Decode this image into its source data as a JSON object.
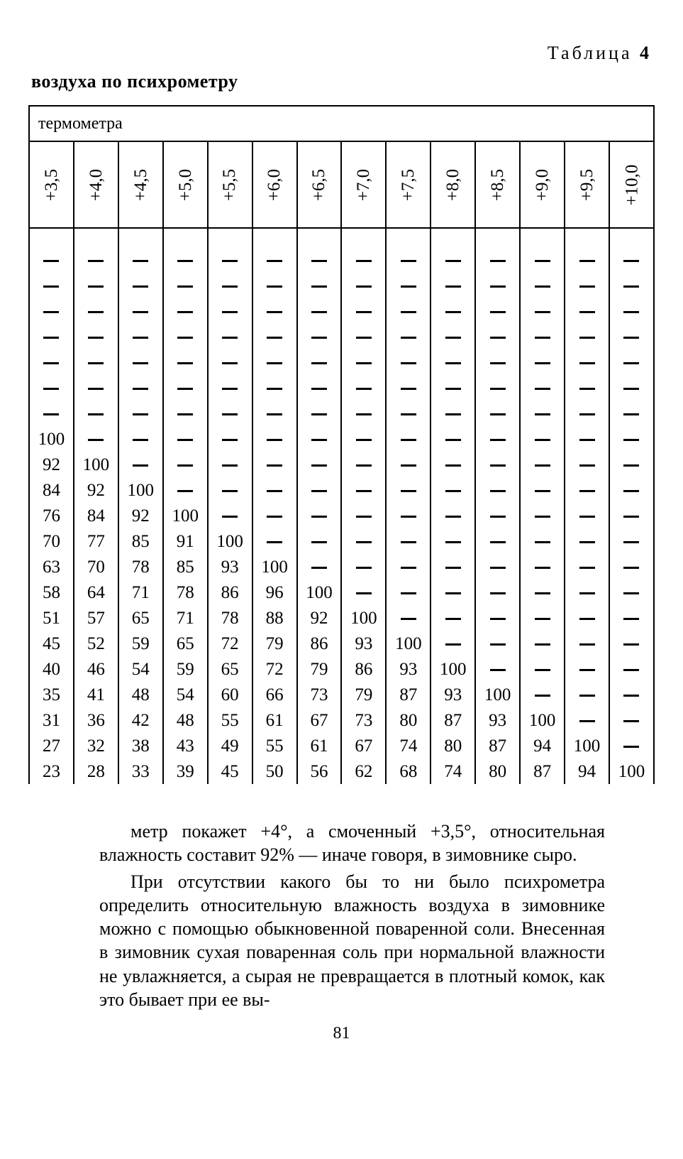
{
  "top_label_word": "Таблица",
  "top_label_num": "4",
  "subtitle": "воздуха по психрометру",
  "group_header": "термометра",
  "col_headers": [
    "+3,5",
    "+4,0",
    "+4,5",
    "+5,0",
    "+5,5",
    "+6,0",
    "+6,5",
    "+7,0",
    "+7,5",
    "+8,0",
    "+8,5",
    "+9,0",
    "+9,5",
    "+10,0"
  ],
  "rows": [
    [
      "—",
      "—",
      "—",
      "—",
      "—",
      "—",
      "—",
      "—",
      "—",
      "—",
      "—",
      "—",
      "—",
      "—"
    ],
    [
      "—",
      "—",
      "—",
      "—",
      "—",
      "—",
      "—",
      "—",
      "—",
      "—",
      "—",
      "—",
      "—",
      "—"
    ],
    [
      "—",
      "—",
      "—",
      "—",
      "—",
      "—",
      "—",
      "—",
      "—",
      "—",
      "—",
      "—",
      "—",
      "—"
    ],
    [
      "—",
      "—",
      "—",
      "—",
      "—",
      "—",
      "—",
      "—",
      "—",
      "—",
      "—",
      "—",
      "—",
      "—"
    ],
    [
      "—",
      "—",
      "—",
      "—",
      "—",
      "—",
      "—",
      "—",
      "—",
      "—",
      "—",
      "—",
      "—",
      "—"
    ],
    [
      "—",
      "—",
      "—",
      "—",
      "—",
      "—",
      "—",
      "—",
      "—",
      "—",
      "—",
      "—",
      "—",
      "—"
    ],
    [
      "—",
      "—",
      "—",
      "—",
      "—",
      "—",
      "—",
      "—",
      "—",
      "—",
      "—",
      "—",
      "—",
      "—"
    ],
    [
      "100",
      "—",
      "—",
      "—",
      "—",
      "—",
      "—",
      "—",
      "—",
      "—",
      "—",
      "—",
      "—",
      "—"
    ],
    [
      "92",
      "100",
      "—",
      "—",
      "—",
      "—",
      "—",
      "—",
      "—",
      "—",
      "—",
      "—",
      "—",
      "—"
    ],
    [
      "84",
      "92",
      "100",
      "—",
      "—",
      "—",
      "—",
      "—",
      "—",
      "—",
      "—",
      "—",
      "—",
      "—"
    ],
    [
      "76",
      "84",
      "92",
      "100",
      "—",
      "—",
      "—",
      "—",
      "—",
      "—",
      "—",
      "—",
      "—",
      "—"
    ],
    [
      "70",
      "77",
      "85",
      "91",
      "100",
      "—",
      "—",
      "—",
      "—",
      "—",
      "—",
      "—",
      "—",
      "—"
    ],
    [
      "63",
      "70",
      "78",
      "85",
      "93",
      "100",
      "—",
      "—",
      "—",
      "—",
      "—",
      "—",
      "—",
      "—"
    ],
    [
      "58",
      "64",
      "71",
      "78",
      "86",
      "96",
      "100",
      "—",
      "—",
      "—",
      "—",
      "—",
      "—",
      "—"
    ],
    [
      "51",
      "57",
      "65",
      "71",
      "78",
      "88",
      "92",
      "100",
      "—",
      "—",
      "—",
      "—",
      "—",
      "—"
    ],
    [
      "45",
      "52",
      "59",
      "65",
      "72",
      "79",
      "86",
      "93",
      "100",
      "—",
      "—",
      "—",
      "—",
      "—"
    ],
    [
      "40",
      "46",
      "54",
      "59",
      "65",
      "72",
      "79",
      "86",
      "93",
      "100",
      "—",
      "—",
      "—",
      "—"
    ],
    [
      "35",
      "41",
      "48",
      "54",
      "60",
      "66",
      "73",
      "79",
      "87",
      "93",
      "100",
      "—",
      "—",
      "—"
    ],
    [
      "31",
      "36",
      "42",
      "48",
      "55",
      "61",
      "67",
      "73",
      "80",
      "87",
      "93",
      "100",
      "—",
      "—"
    ],
    [
      "27",
      "32",
      "38",
      "43",
      "49",
      "55",
      "61",
      "67",
      "74",
      "80",
      "87",
      "94",
      "100",
      "—"
    ],
    [
      "23",
      "28",
      "33",
      "39",
      "45",
      "50",
      "56",
      "62",
      "68",
      "74",
      "80",
      "87",
      "94",
      "100"
    ]
  ],
  "para1": "метр покажет +4°, а смоченный +3,5°, относительная влажность составит 92% — иначе говоря, в зимовнике сыро.",
  "para2": "При отсутствии какого бы то ни было психрометра определить относительную влажность воздуха в зимов­нике можно с помощью обыкновенной поваренной соли. Внесенная в зимовник сухая поваренная соль при нор­мальной влажности не увлажняется, а сырая не пре­вращается в плотный комок, как это бывает при ее вы-",
  "page_number": "81"
}
